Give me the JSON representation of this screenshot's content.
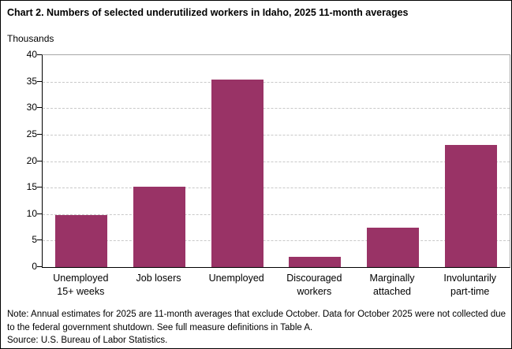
{
  "title": "Chart 2. Numbers of selected underutilized workers in Idaho, 2025 11-month averages",
  "chart_data": {
    "type": "bar",
    "title": "Chart 2. Numbers of selected underutilized workers in Idaho, 2025 11-month averages",
    "ylabel": "Thousands",
    "xlabel": "",
    "categories": [
      "Unemployed\n15+ weeks",
      "Job losers",
      "Unemployed",
      "Discouraged\nworkers",
      "Marginally\nattached",
      "Involuntarily\npart-time"
    ],
    "values": [
      9.8,
      15.1,
      35.4,
      2.0,
      7.5,
      23.0
    ],
    "ylim": [
      0,
      40
    ],
    "yticks": [
      0,
      5,
      10,
      15,
      20,
      25,
      30,
      35,
      40
    ],
    "grid": "horizontal-dashed",
    "legend": "none",
    "bar_color": "#993366"
  },
  "colors": {
    "bar": "#993366",
    "gridline": "#c9c9c9",
    "plot_border": "#a6a6a6",
    "axis": "#000000"
  },
  "notes": {
    "note": "Note: Annual estimates for 2025 are 11-month averages that exclude October. Data for October 2025 were not collected due to the federal government shutdown. See full measure definitions in Table A.",
    "source": "Source: U.S. Bureau of Labor Statistics."
  }
}
